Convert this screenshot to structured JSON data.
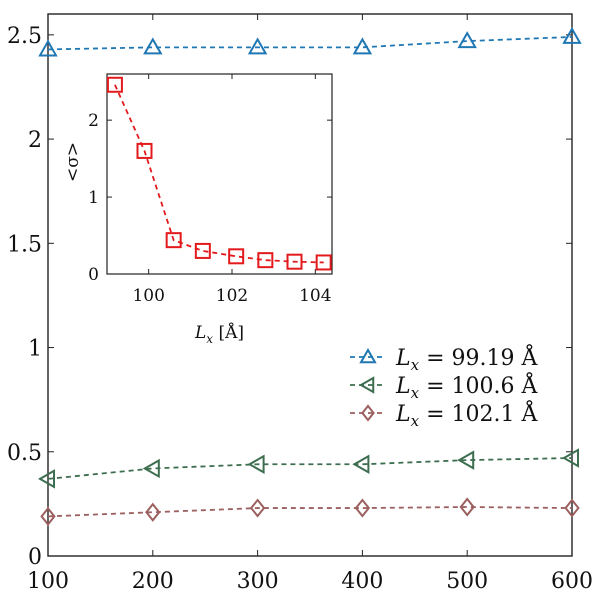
{
  "chart_data": [
    {
      "type": "line",
      "title": "",
      "xlabel": "",
      "ylabel": "",
      "xlim": [
        100,
        600
      ],
      "ylim": [
        0,
        2.6
      ],
      "xticks": [
        "100",
        "200",
        "300",
        "400",
        "500",
        "600"
      ],
      "yticks": [
        "0",
        "0.5",
        "1",
        "1.5",
        "2",
        "2.5"
      ],
      "grid": false,
      "legend_position": "right",
      "x": [
        100,
        200,
        300,
        400,
        500,
        600
      ],
      "series": [
        {
          "name": "L_x = 99.19 Å",
          "name_symbol": "L",
          "name_subscript": "x",
          "name_value": " = 99.19 Å",
          "marker": "triangle-up",
          "color": "#1f77b4",
          "values": [
            2.43,
            2.44,
            2.44,
            2.44,
            2.47,
            2.49
          ]
        },
        {
          "name": "L_x = 100.6 Å",
          "name_symbol": "L",
          "name_subscript": "x",
          "name_value": " = 100.6 Å",
          "marker": "triangle-left",
          "color": "#3d6e4f",
          "values": [
            0.37,
            0.42,
            0.44,
            0.44,
            0.46,
            0.47
          ]
        },
        {
          "name": "L_x = 102.1 Å",
          "name_symbol": "L",
          "name_subscript": "x",
          "name_value": " = 102.1 Å",
          "marker": "diamond",
          "color": "#9c5f5f",
          "values": [
            0.19,
            0.21,
            0.23,
            0.23,
            0.235,
            0.23
          ]
        }
      ]
    },
    {
      "type": "line",
      "title": "",
      "xlabel": "L_x [Å]",
      "xlabel_symbol": "L",
      "xlabel_subscript": "x",
      "xlabel_unit": " [Å]",
      "ylabel": "<σ>",
      "xlim": [
        99,
        104.4
      ],
      "ylim": [
        0,
        2.6
      ],
      "xticks": [
        "100",
        "102",
        "104"
      ],
      "yticks": [
        "0",
        "1",
        "2"
      ],
      "grid": false,
      "x": [
        99.19,
        99.9,
        100.6,
        101.3,
        102.1,
        102.8,
        103.5,
        104.2
      ],
      "series": [
        {
          "marker": "square",
          "color": "#e31a1c",
          "values": [
            2.46,
            1.6,
            0.44,
            0.3,
            0.23,
            0.18,
            0.16,
            0.15
          ]
        }
      ]
    }
  ]
}
